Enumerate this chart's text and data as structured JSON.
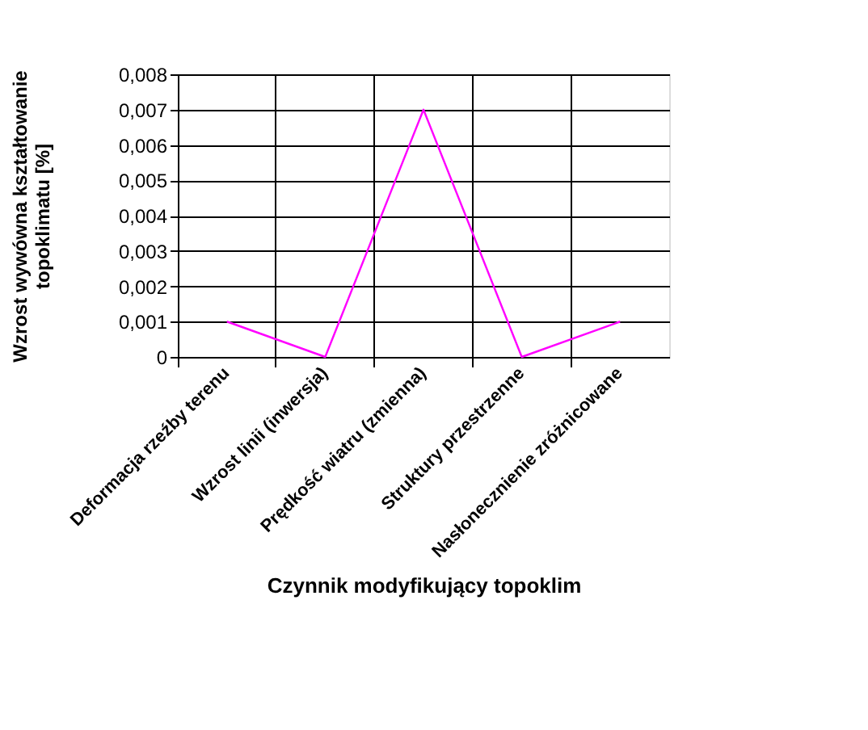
{
  "chart_data": {
    "type": "line",
    "xlabel": "Czynnik modyfikujący topoklim",
    "ylabel": [
      "Wzrost  wywówna kształtowanie",
      "topoklimatu [%]"
    ],
    "categories": [
      "Deformacja rzeźby terenu",
      "Wzrost linii (inwersja)",
      "Prędkość wiatru (zmienna)",
      "Struktury przestrzenne",
      "Nasłonecznienie zróżnicowane"
    ],
    "series": [
      {
        "color": "#ff00ff",
        "values": [
          0.001,
          0,
          0.007,
          0,
          0.001
        ]
      }
    ],
    "ylim": [
      0,
      0.008
    ],
    "yticks": [
      {
        "value": 0,
        "label": "0"
      },
      {
        "value": 0.001,
        "label": "0,001"
      },
      {
        "value": 0.002,
        "label": "0,002"
      },
      {
        "value": 0.003,
        "label": "0,003"
      },
      {
        "value": 0.004,
        "label": "0,004"
      },
      {
        "value": 0.005,
        "label": "0,005"
      },
      {
        "value": 0.006,
        "label": "0,006"
      },
      {
        "value": 0.007,
        "label": "0,007"
      },
      {
        "value": 0.008,
        "label": "0,008"
      }
    ],
    "grid": true,
    "marker": "none",
    "line_style": "solid"
  }
}
